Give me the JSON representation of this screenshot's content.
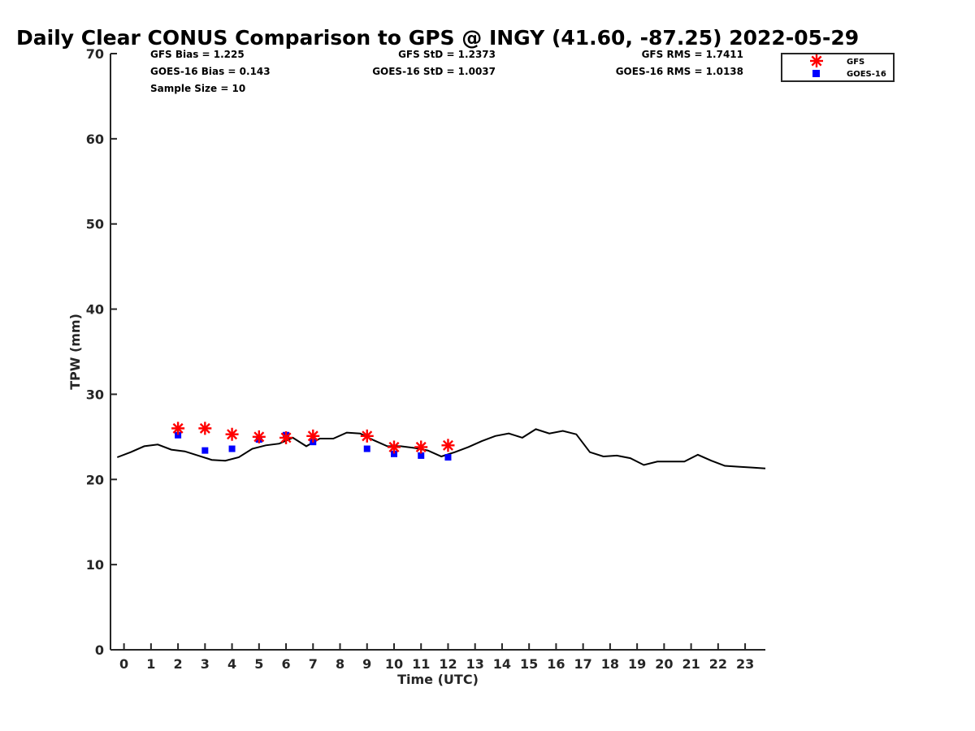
{
  "chart_data": {
    "type": "scatter",
    "title": "Daily Clear CONUS Comparison to GPS @ INGY (41.60, -87.25) 2022-05-29",
    "xlabel": "Time (UTC)",
    "ylabel": "TPW (mm)",
    "xlim": [
      -0.5,
      23.75
    ],
    "ylim": [
      0,
      70
    ],
    "xticks": [
      "0",
      "1",
      "2",
      "3",
      "4",
      "5",
      "6",
      "7",
      "8",
      "9",
      "10",
      "11",
      "12",
      "13",
      "14",
      "15",
      "16",
      "17",
      "18",
      "19",
      "20",
      "21",
      "22",
      "23"
    ],
    "yticks": [
      "0",
      "10",
      "20",
      "30",
      "40",
      "50",
      "60",
      "70"
    ],
    "grid": false,
    "legend_position": "top-right",
    "stats": {
      "gfs_bias": "GFS Bias = 1.225",
      "goes_bias": "GOES-16 Bias = 0.143",
      "sample_size": "Sample Size = 10",
      "gfs_std": "GFS StD = 1.2373",
      "goes_std": "GOES-16 StD = 1.0037",
      "gfs_rms": "GFS RMS = 1.7411",
      "goes_rms": "GOES-16 RMS = 1.0138"
    },
    "series": [
      {
        "name": "GFS",
        "marker": "asterisk",
        "color": "#ff0000",
        "x": [
          2,
          3,
          4,
          5,
          6,
          7,
          9,
          10,
          11,
          12
        ],
        "y": [
          26.0,
          26.0,
          25.3,
          25.0,
          24.9,
          25.1,
          25.1,
          23.8,
          23.8,
          24.0
        ]
      },
      {
        "name": "GOES-16",
        "marker": "square",
        "color": "#0000ff",
        "x": [
          2,
          3,
          4,
          5,
          6,
          7,
          9,
          10,
          11,
          12
        ],
        "y": [
          25.2,
          23.4,
          23.6,
          24.7,
          25.2,
          24.4,
          23.6,
          23.0,
          22.8,
          22.6
        ]
      },
      {
        "marker": "line",
        "color": "#000000",
        "x": [
          -0.25,
          0.25,
          0.75,
          1.25,
          1.75,
          2.25,
          2.75,
          3.25,
          3.75,
          4.25,
          4.75,
          5.25,
          5.75,
          6.25,
          6.75,
          7.25,
          7.75,
          8.25,
          8.75,
          9.25,
          9.75,
          10.25,
          10.75,
          11.25,
          11.75,
          12.25,
          12.75,
          13.25,
          13.75,
          14.25,
          14.75,
          15.25,
          15.75,
          16.25,
          16.75,
          17.25,
          17.75,
          18.25,
          18.75,
          19.25,
          19.75,
          20.25,
          20.75,
          21.25,
          21.75,
          22.25,
          22.75,
          23.25,
          23.75
        ],
        "y": [
          22.6,
          23.2,
          23.9,
          24.1,
          23.5,
          23.3,
          22.8,
          22.3,
          22.2,
          22.6,
          23.6,
          24.0,
          24.2,
          24.9,
          23.9,
          24.8,
          24.8,
          25.5,
          25.4,
          24.6,
          23.9,
          23.9,
          23.7,
          23.4,
          22.7,
          23.2,
          23.8,
          24.5,
          25.1,
          25.4,
          24.9,
          25.9,
          25.4,
          25.7,
          25.3,
          23.2,
          22.7,
          22.8,
          22.5,
          21.7,
          22.1,
          22.1,
          22.1,
          22.9,
          22.2,
          21.6,
          21.5,
          21.4,
          21.3
        ]
      }
    ]
  }
}
